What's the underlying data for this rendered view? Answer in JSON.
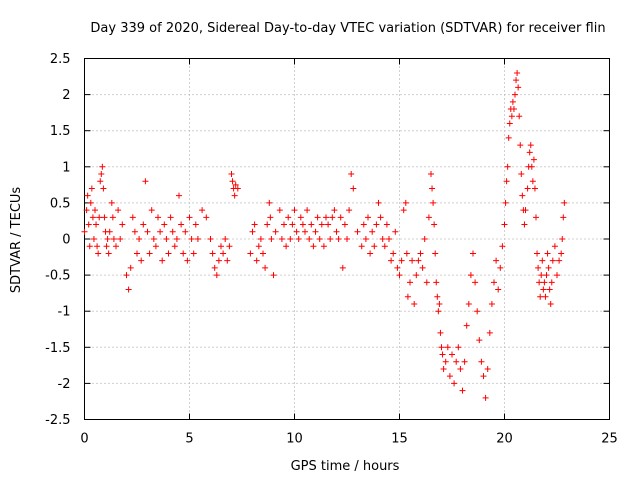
{
  "chart_data": {
    "type": "scatter",
    "title": "Day 339 of 2020, Sidereal Day-to-day VTEC variation (SDTVAR) for receiver flin",
    "xlabel": "GPS time / hours",
    "ylabel": "SDTVAR / TECUs",
    "xlim": [
      0,
      25
    ],
    "ylim": [
      -2.5,
      2.5
    ],
    "xticks": [
      "0",
      "5",
      "10",
      "15",
      "20",
      "25"
    ],
    "yticks": [
      "-2.5",
      "-2",
      "-1.5",
      "-1",
      "-0.5",
      "0",
      "0.5",
      "1",
      "1.5",
      "2",
      "2.5"
    ],
    "grid": true,
    "marker": "+",
    "color": "#ff0000",
    "series": [
      {
        "name": "SDTVAR",
        "points": [
          [
            0.0,
            0.1
          ],
          [
            0.1,
            0.4
          ],
          [
            0.15,
            0.6
          ],
          [
            0.2,
            0.2
          ],
          [
            0.25,
            -0.1
          ],
          [
            0.3,
            0.5
          ],
          [
            0.35,
            0.7
          ],
          [
            0.4,
            0.3
          ],
          [
            0.45,
            0.0
          ],
          [
            0.5,
            0.4
          ],
          [
            0.55,
            0.2
          ],
          [
            0.6,
            -0.1
          ],
          [
            0.65,
            -0.2
          ],
          [
            0.7,
            0.3
          ],
          [
            0.75,
            0.8
          ],
          [
            0.8,
            0.9
          ],
          [
            0.85,
            1.0
          ],
          [
            0.9,
            0.7
          ],
          [
            0.95,
            0.3
          ],
          [
            1.0,
            0.1
          ],
          [
            1.05,
            -0.1
          ],
          [
            1.1,
            0.0
          ],
          [
            1.15,
            -0.2
          ],
          [
            1.2,
            0.1
          ],
          [
            1.3,
            0.5
          ],
          [
            1.35,
            0.3
          ],
          [
            1.4,
            0.0
          ],
          [
            1.5,
            -0.1
          ],
          [
            1.6,
            0.4
          ],
          [
            1.7,
            0.0
          ],
          [
            1.8,
            0.2
          ],
          [
            2.0,
            -0.5
          ],
          [
            2.1,
            -0.7
          ],
          [
            2.2,
            -0.4
          ],
          [
            2.3,
            0.3
          ],
          [
            2.4,
            0.1
          ],
          [
            2.5,
            -0.2
          ],
          [
            2.6,
            0.0
          ],
          [
            2.7,
            -0.3
          ],
          [
            2.8,
            0.2
          ],
          [
            2.9,
            0.8
          ],
          [
            3.0,
            0.1
          ],
          [
            3.1,
            -0.2
          ],
          [
            3.2,
            0.4
          ],
          [
            3.3,
            0.0
          ],
          [
            3.4,
            -0.1
          ],
          [
            3.5,
            0.3
          ],
          [
            3.6,
            0.1
          ],
          [
            3.7,
            -0.3
          ],
          [
            3.8,
            0.2
          ],
          [
            3.9,
            0.0
          ],
          [
            4.0,
            -0.2
          ],
          [
            4.1,
            0.3
          ],
          [
            4.2,
            0.1
          ],
          [
            4.3,
            -0.1
          ],
          [
            4.4,
            0.0
          ],
          [
            4.5,
            0.6
          ],
          [
            4.6,
            0.2
          ],
          [
            4.7,
            -0.2
          ],
          [
            4.8,
            0.1
          ],
          [
            4.9,
            -0.3
          ],
          [
            5.0,
            0.3
          ],
          [
            5.1,
            0.0
          ],
          [
            5.2,
            -0.2
          ],
          [
            5.3,
            0.2
          ],
          [
            5.4,
            0.0
          ],
          [
            5.6,
            0.4
          ],
          [
            5.8,
            0.3
          ],
          [
            6.0,
            0.0
          ],
          [
            6.1,
            -0.2
          ],
          [
            6.2,
            -0.4
          ],
          [
            6.3,
            -0.5
          ],
          [
            6.4,
            -0.3
          ],
          [
            6.5,
            -0.1
          ],
          [
            6.6,
            -0.2
          ],
          [
            6.7,
            0.0
          ],
          [
            6.8,
            -0.3
          ],
          [
            6.9,
            -0.1
          ],
          [
            7.0,
            0.9
          ],
          [
            7.05,
            0.8
          ],
          [
            7.1,
            0.7
          ],
          [
            7.15,
            0.6
          ],
          [
            7.2,
            0.75
          ],
          [
            7.3,
            0.7
          ],
          [
            7.9,
            -0.2
          ],
          [
            8.0,
            0.1
          ],
          [
            8.1,
            0.2
          ],
          [
            8.2,
            -0.3
          ],
          [
            8.3,
            -0.1
          ],
          [
            8.4,
            0.0
          ],
          [
            8.5,
            -0.2
          ],
          [
            8.6,
            -0.4
          ],
          [
            8.7,
            0.2
          ],
          [
            8.8,
            0.5
          ],
          [
            8.85,
            0.3
          ],
          [
            8.9,
            0.0
          ],
          [
            9.0,
            -0.5
          ],
          [
            9.1,
            0.1
          ],
          [
            9.3,
            0.4
          ],
          [
            9.4,
            0.0
          ],
          [
            9.5,
            0.2
          ],
          [
            9.6,
            -0.1
          ],
          [
            9.7,
            0.3
          ],
          [
            9.8,
            0.0
          ],
          [
            9.9,
            0.2
          ],
          [
            10.0,
            0.4
          ],
          [
            10.1,
            0.1
          ],
          [
            10.2,
            0.0
          ],
          [
            10.3,
            0.3
          ],
          [
            10.4,
            0.2
          ],
          [
            10.5,
            0.1
          ],
          [
            10.6,
            0.4
          ],
          [
            10.7,
            0.0
          ],
          [
            10.8,
            0.2
          ],
          [
            10.9,
            -0.1
          ],
          [
            11.0,
            0.1
          ],
          [
            11.1,
            0.3
          ],
          [
            11.2,
            0.0
          ],
          [
            11.3,
            0.2
          ],
          [
            11.4,
            -0.1
          ],
          [
            11.5,
            0.3
          ],
          [
            11.6,
            0.2
          ],
          [
            11.7,
            0.0
          ],
          [
            11.8,
            0.3
          ],
          [
            11.9,
            0.4
          ],
          [
            12.0,
            0.1
          ],
          [
            12.1,
            0.0
          ],
          [
            12.2,
            0.3
          ],
          [
            12.3,
            -0.4
          ],
          [
            12.4,
            0.2
          ],
          [
            12.5,
            0.0
          ],
          [
            12.6,
            0.4
          ],
          [
            12.7,
            0.9
          ],
          [
            12.8,
            0.7
          ],
          [
            13.0,
            0.1
          ],
          [
            13.2,
            -0.1
          ],
          [
            13.3,
            0.2
          ],
          [
            13.4,
            0.0
          ],
          [
            13.5,
            0.3
          ],
          [
            13.6,
            -0.2
          ],
          [
            13.7,
            0.1
          ],
          [
            13.8,
            -0.1
          ],
          [
            13.9,
            0.2
          ],
          [
            14.0,
            0.5
          ],
          [
            14.1,
            0.3
          ],
          [
            14.2,
            0.0
          ],
          [
            14.3,
            -0.1
          ],
          [
            14.4,
            0.2
          ],
          [
            14.5,
            0.0
          ],
          [
            14.6,
            -0.3
          ],
          [
            14.7,
            -0.2
          ],
          [
            14.8,
            0.1
          ],
          [
            14.9,
            -0.4
          ],
          [
            15.0,
            -0.5
          ],
          [
            15.1,
            -0.3
          ],
          [
            15.2,
            0.4
          ],
          [
            15.3,
            0.5
          ],
          [
            15.35,
            -0.2
          ],
          [
            15.4,
            -0.8
          ],
          [
            15.5,
            -0.6
          ],
          [
            15.6,
            -0.3
          ],
          [
            15.7,
            -0.9
          ],
          [
            15.8,
            -0.5
          ],
          [
            15.9,
            -0.3
          ],
          [
            16.0,
            -0.2
          ],
          [
            16.1,
            -0.4
          ],
          [
            16.2,
            0.0
          ],
          [
            16.3,
            -0.6
          ],
          [
            16.4,
            0.3
          ],
          [
            16.5,
            0.9
          ],
          [
            16.55,
            0.7
          ],
          [
            16.6,
            0.5
          ],
          [
            16.65,
            0.2
          ],
          [
            16.7,
            -0.2
          ],
          [
            16.75,
            -0.6
          ],
          [
            16.8,
            -0.8
          ],
          [
            16.85,
            -1.0
          ],
          [
            16.9,
            -0.9
          ],
          [
            16.95,
            -1.3
          ],
          [
            17.0,
            -1.5
          ],
          [
            17.05,
            -1.6
          ],
          [
            17.1,
            -1.8
          ],
          [
            17.2,
            -1.7
          ],
          [
            17.3,
            -1.5
          ],
          [
            17.4,
            -1.9
          ],
          [
            17.5,
            -1.6
          ],
          [
            17.6,
            -2.0
          ],
          [
            17.7,
            -1.7
          ],
          [
            17.8,
            -1.5
          ],
          [
            17.9,
            -1.8
          ],
          [
            18.0,
            -2.1
          ],
          [
            18.1,
            -1.7
          ],
          [
            18.2,
            -1.2
          ],
          [
            18.3,
            -0.9
          ],
          [
            18.4,
            -0.5
          ],
          [
            18.5,
            -0.2
          ],
          [
            18.6,
            -0.6
          ],
          [
            18.7,
            -1.0
          ],
          [
            18.8,
            -1.4
          ],
          [
            18.9,
            -1.7
          ],
          [
            19.0,
            -1.9
          ],
          [
            19.1,
            -2.2
          ],
          [
            19.2,
            -1.8
          ],
          [
            19.3,
            -1.3
          ],
          [
            19.4,
            -0.9
          ],
          [
            19.5,
            -0.6
          ],
          [
            19.6,
            -0.3
          ],
          [
            19.7,
            -0.7
          ],
          [
            19.8,
            -0.4
          ],
          [
            19.9,
            -0.1
          ],
          [
            20.0,
            0.2
          ],
          [
            20.05,
            0.5
          ],
          [
            20.1,
            0.8
          ],
          [
            20.15,
            1.0
          ],
          [
            20.2,
            1.4
          ],
          [
            20.25,
            1.6
          ],
          [
            20.3,
            1.8
          ],
          [
            20.35,
            1.7
          ],
          [
            20.4,
            1.9
          ],
          [
            20.45,
            1.8
          ],
          [
            20.5,
            2.0
          ],
          [
            20.55,
            2.2
          ],
          [
            20.6,
            2.3
          ],
          [
            20.65,
            2.1
          ],
          [
            20.7,
            1.7
          ],
          [
            20.75,
            1.3
          ],
          [
            20.8,
            0.9
          ],
          [
            20.85,
            0.6
          ],
          [
            20.9,
            0.4
          ],
          [
            20.95,
            0.2
          ],
          [
            21.0,
            0.4
          ],
          [
            21.1,
            0.7
          ],
          [
            21.15,
            1.0
          ],
          [
            21.2,
            1.2
          ],
          [
            21.25,
            1.3
          ],
          [
            21.3,
            1.0
          ],
          [
            21.35,
            0.8
          ],
          [
            21.4,
            1.1
          ],
          [
            21.45,
            0.7
          ],
          [
            21.5,
            0.3
          ],
          [
            21.55,
            -0.2
          ],
          [
            21.6,
            -0.4
          ],
          [
            21.65,
            -0.6
          ],
          [
            21.7,
            -0.8
          ],
          [
            21.75,
            -0.5
          ],
          [
            21.8,
            -0.3
          ],
          [
            21.85,
            -0.7
          ],
          [
            21.9,
            -0.6
          ],
          [
            21.95,
            -0.8
          ],
          [
            22.0,
            -0.5
          ],
          [
            22.05,
            -0.2
          ],
          [
            22.1,
            -0.4
          ],
          [
            22.15,
            -0.7
          ],
          [
            22.2,
            -0.9
          ],
          [
            22.25,
            -0.6
          ],
          [
            22.3,
            -0.3
          ],
          [
            22.4,
            -0.1
          ],
          [
            22.5,
            -0.5
          ],
          [
            22.6,
            -0.3
          ],
          [
            22.7,
            -0.2
          ],
          [
            22.75,
            0.0
          ],
          [
            22.8,
            0.3
          ],
          [
            22.85,
            0.5
          ]
        ]
      }
    ]
  }
}
